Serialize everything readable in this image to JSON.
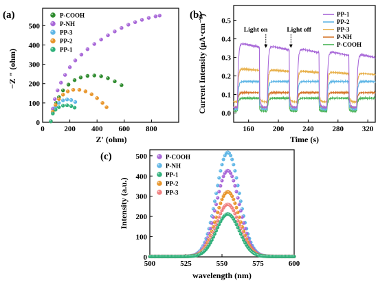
{
  "chart_data": [
    {
      "panel": "(a)",
      "type": "scatter",
      "xlabel": "Z' (ohm)",
      "ylabel": "−Z \" (ohm)",
      "xlim": [
        0,
        1000
      ],
      "ylim": [
        0,
        590
      ],
      "xticks": [
        0,
        200,
        400,
        600,
        800
      ],
      "yticks": [
        0,
        100,
        200,
        300,
        400,
        500
      ],
      "legend_position": "top-left",
      "series": [
        {
          "name": "P-COOH",
          "color": "#2e8b2e",
          "points": [
            [
              60,
              5
            ],
            [
              80,
              65
            ],
            [
              100,
              100
            ],
            [
              120,
              130
            ],
            [
              150,
              165
            ],
            [
              190,
              195
            ],
            [
              235,
              218
            ],
            [
              280,
              232
            ],
            [
              330,
              240
            ],
            [
              380,
              242
            ],
            [
              430,
              238
            ],
            [
              480,
              228
            ],
            [
              530,
              212
            ],
            [
              580,
              192
            ]
          ]
        },
        {
          "name": "P-NH",
          "color": "#a868d8",
          "points": [
            [
              60,
              5
            ],
            [
              75,
              70
            ],
            [
              90,
              120
            ],
            [
              110,
              165
            ],
            [
              135,
              205
            ],
            [
              165,
              245
            ],
            [
              200,
              285
            ],
            [
              240,
              320
            ],
            [
              285,
              350
            ],
            [
              330,
              378
            ],
            [
              380,
              405
            ],
            [
              430,
              428
            ],
            [
              480,
              450
            ],
            [
              530,
              470
            ],
            [
              580,
              488
            ],
            [
              630,
              505
            ],
            [
              680,
              518
            ],
            [
              730,
              530
            ],
            [
              780,
              540
            ],
            [
              830,
              548
            ],
            [
              860,
              552
            ]
          ]
        },
        {
          "name": "PP-3",
          "color": "#5fb6e6",
          "points": [
            [
              60,
              5
            ],
            [
              75,
              50
            ],
            [
              95,
              80
            ],
            [
              120,
              100
            ],
            [
              150,
              113
            ],
            [
              180,
              118
            ],
            [
              210,
              115
            ],
            [
              240,
              105
            ]
          ]
        },
        {
          "name": "PP-2",
          "color": "#e8952a",
          "points": [
            [
              60,
              5
            ],
            [
              75,
              55
            ],
            [
              95,
              90
            ],
            [
              120,
              120
            ],
            [
              150,
              143
            ],
            [
              185,
              160
            ],
            [
              225,
              168
            ],
            [
              270,
              168
            ],
            [
              315,
              160
            ],
            [
              360,
              145
            ],
            [
              400,
              125
            ],
            [
              440,
              100
            ],
            [
              470,
              78
            ]
          ]
        },
        {
          "name": "PP-1",
          "color": "#2fb07a",
          "points": [
            [
              60,
              5
            ],
            [
              75,
              45
            ],
            [
              95,
              65
            ],
            [
              120,
              78
            ],
            [
              150,
              86
            ],
            [
              180,
              88
            ],
            [
              210,
              84
            ],
            [
              235,
              76
            ]
          ]
        }
      ]
    },
    {
      "panel": "(b)",
      "type": "line",
      "xlabel": "Time (s)",
      "ylabel": "Current Intensity (μA·cm⁻²)",
      "xlim": [
        140,
        330
      ],
      "ylim": [
        -0.05,
        0.58
      ],
      "xticks": [
        160,
        200,
        240,
        280,
        320
      ],
      "yticks": [
        0.0,
        0.1,
        0.2,
        0.3,
        0.4,
        0.5
      ],
      "legend_position": "top-right",
      "light_on_periods": [
        [
          145,
          175
        ],
        [
          185,
          215
        ],
        [
          225,
          255
        ],
        [
          265,
          295
        ],
        [
          305,
          335
        ]
      ],
      "annotations": [
        {
          "text": "Light on",
          "x": 185,
          "y": 0.44
        },
        {
          "text": "Light off",
          "x": 215,
          "y": 0.44
        }
      ],
      "series": [
        {
          "name": "PP-1",
          "color": "#a868d8",
          "on": 0.38,
          "off": 0.03,
          "decay": 0.025
        },
        {
          "name": "PP-2",
          "color": "#5fb6e6",
          "on": 0.17,
          "off": 0.02,
          "decay": 0.0
        },
        {
          "name": "PP-3",
          "color": "#e8b04a",
          "on": 0.24,
          "off": 0.06,
          "decay": 0.01
        },
        {
          "name": "P-NH",
          "color": "#d6762a",
          "on": 0.11,
          "off": 0.03,
          "decay": 0.0
        },
        {
          "name": "P-COOH",
          "color": "#49b457",
          "on": 0.08,
          "off": 0.01,
          "decay": 0.0
        }
      ]
    },
    {
      "panel": "(c)",
      "type": "scatter",
      "xlabel": "wavelength (nm)",
      "ylabel": "Intensity (a.u.)",
      "xlim": [
        500,
        600
      ],
      "ylim": [
        0,
        530
      ],
      "xticks": [
        500,
        525,
        550,
        575,
        600
      ],
      "yticks": [
        0,
        100,
        200,
        300,
        400,
        500
      ],
      "legend_position": "top-left",
      "peak_center": 554,
      "peak_width": 8,
      "series": [
        {
          "name": "P-COOH",
          "color": "#a868d8",
          "peak": 425
        },
        {
          "name": "P-NH",
          "color": "#5fb6e6",
          "peak": 515
        },
        {
          "name": "PP-1",
          "color": "#2fb07a",
          "peak": 210
        },
        {
          "name": "PP-2",
          "color": "#e8952a",
          "peak": 320
        },
        {
          "name": "PP-3",
          "color": "#f08080",
          "peak": 258
        }
      ]
    }
  ]
}
